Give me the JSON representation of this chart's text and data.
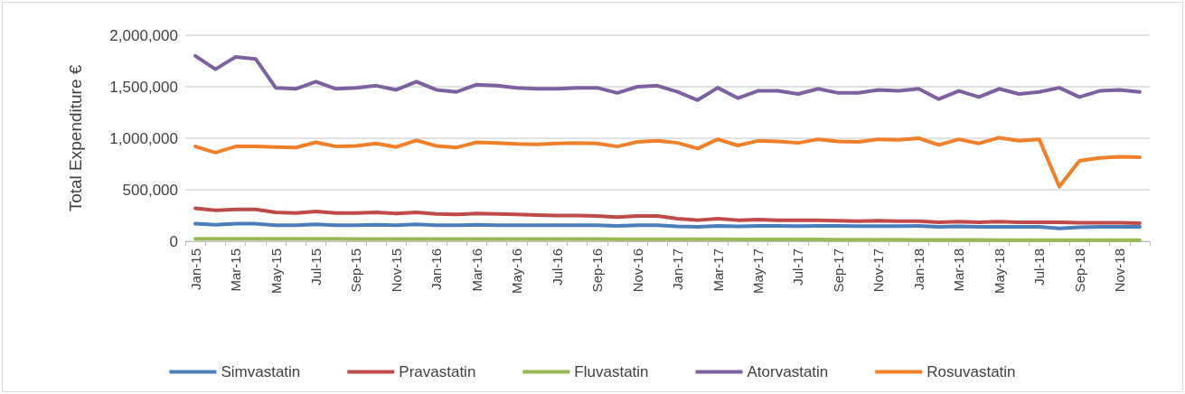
{
  "chart_data": {
    "type": "line",
    "ylabel": "Total Expenditure €",
    "legend": "bottom",
    "grid": "y",
    "marker": "none",
    "line_style": "solid",
    "categories": [
      "Jan-15",
      null,
      "Mar-15",
      null,
      "May-15",
      null,
      "Jul-15",
      null,
      "Sep-15",
      null,
      "Nov-15",
      null,
      "Jan-16",
      null,
      "Mar-16",
      null,
      "May-16",
      null,
      "Jul-16",
      null,
      "Sep-16",
      null,
      "Nov-16",
      null,
      "Jan-17",
      null,
      "Mar-17",
      null,
      "May-17",
      null,
      "Jul-17",
      null,
      "Sep-17",
      null,
      "Nov-17",
      null,
      "Jan-18",
      null,
      "Mar-18",
      null,
      "May-18",
      null,
      "Jul-18",
      null,
      "Sep-18",
      null,
      "Nov-18",
      null
    ],
    "ylim": [
      0,
      2000000
    ],
    "yticks": [
      0,
      {
        "value": 500000,
        "label": "500,000"
      },
      {
        "value": 1000000,
        "label": "1,000,000"
      },
      {
        "value": 1500000,
        "label": "1,500,000"
      },
      {
        "value": 2000000,
        "label": "2,000,000"
      }
    ],
    "series": [
      {
        "name": "Simvastatin",
        "color": "#4a7ebb",
        "values": [
          170000,
          160000,
          170000,
          170000,
          155000,
          155000,
          165000,
          155000,
          155000,
          160000,
          155000,
          165000,
          155000,
          155000,
          160000,
          155000,
          155000,
          155000,
          155000,
          155000,
          155000,
          150000,
          155000,
          155000,
          145000,
          140000,
          150000,
          145000,
          150000,
          150000,
          148000,
          150000,
          150000,
          148000,
          148000,
          148000,
          150000,
          140000,
          145000,
          140000,
          140000,
          140000,
          140000,
          125000,
          135000,
          140000,
          140000,
          140000
        ]
      },
      {
        "name": "Pravastatin",
        "color": "#be4b48",
        "values": [
          320000,
          300000,
          310000,
          310000,
          280000,
          275000,
          290000,
          275000,
          275000,
          280000,
          270000,
          280000,
          265000,
          260000,
          270000,
          265000,
          260000,
          255000,
          250000,
          250000,
          245000,
          235000,
          245000,
          245000,
          220000,
          205000,
          220000,
          205000,
          210000,
          205000,
          205000,
          205000,
          200000,
          195000,
          200000,
          195000,
          195000,
          185000,
          190000,
          185000,
          190000,
          185000,
          185000,
          185000,
          180000,
          180000,
          180000,
          175000
        ]
      },
      {
        "name": "Fluvastatin",
        "color": "#98b954",
        "values": [
          25000,
          25000,
          25000,
          25000,
          24000,
          24000,
          24000,
          24000,
          23000,
          23000,
          23000,
          23000,
          23000,
          22000,
          22000,
          22000,
          22000,
          22000,
          21000,
          21000,
          21000,
          20000,
          20000,
          20000,
          19000,
          19000,
          19000,
          18000,
          18000,
          18000,
          17000,
          17000,
          16000,
          16000,
          15000,
          15000,
          14000,
          14000,
          13000,
          13000,
          12000,
          12000,
          12000,
          11000,
          11000,
          10000,
          10000,
          10000
        ]
      },
      {
        "name": "Atorvastatin",
        "color": "#7d60a0",
        "values": [
          1800000,
          1670000,
          1790000,
          1770000,
          1490000,
          1480000,
          1550000,
          1480000,
          1490000,
          1510000,
          1470000,
          1550000,
          1470000,
          1450000,
          1520000,
          1510000,
          1490000,
          1480000,
          1480000,
          1490000,
          1490000,
          1440000,
          1500000,
          1510000,
          1450000,
          1370000,
          1490000,
          1390000,
          1460000,
          1460000,
          1430000,
          1480000,
          1440000,
          1440000,
          1470000,
          1460000,
          1480000,
          1380000,
          1460000,
          1400000,
          1480000,
          1430000,
          1450000,
          1490000,
          1400000,
          1460000,
          1470000,
          1450000
        ]
      },
      {
        "name": "Rosuvastatin",
        "color": "#f07f29",
        "values": [
          920000,
          860000,
          920000,
          920000,
          915000,
          910000,
          960000,
          920000,
          925000,
          950000,
          915000,
          980000,
          925000,
          910000,
          960000,
          955000,
          945000,
          940000,
          950000,
          955000,
          950000,
          920000,
          965000,
          975000,
          955000,
          900000,
          990000,
          930000,
          975000,
          970000,
          955000,
          990000,
          970000,
          965000,
          990000,
          985000,
          1000000,
          935000,
          990000,
          950000,
          1005000,
          975000,
          990000,
          530000,
          780000,
          810000,
          820000,
          815000
        ]
      }
    ]
  }
}
